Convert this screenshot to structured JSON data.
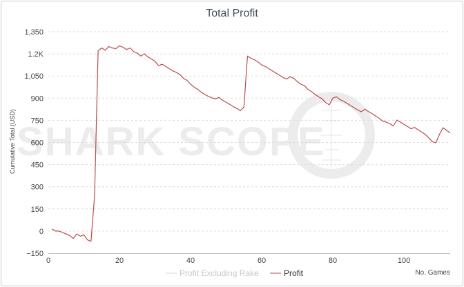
{
  "chart_data": {
    "type": "line",
    "title": "Total Profit",
    "ylabel": "Cumulative Total (USD)",
    "xlabel": "No. Games",
    "watermark": "SHARK SCOPE",
    "xlim": [
      0,
      113
    ],
    "ylim": [
      -150,
      1350
    ],
    "xticks": [
      0,
      20,
      40,
      60,
      80,
      100
    ],
    "yticks": [
      -150,
      0,
      150,
      300,
      450,
      600,
      750,
      900,
      1050,
      1200,
      1350
    ],
    "ytick_labels": [
      "−150",
      "0",
      "150",
      "300",
      "450",
      "600",
      "750",
      "900",
      "1,050",
      "1.2K",
      "1,350"
    ],
    "grid": true,
    "legend_position": "bottom-center",
    "series": [
      {
        "name": "Profit Excluding Rake",
        "color": "#d8d8d8",
        "visible": false,
        "values": []
      },
      {
        "name": "Profit",
        "color": "#b84a4a",
        "visible": true,
        "points": [
          [
            1,
            15
          ],
          [
            2,
            0
          ],
          [
            3,
            0
          ],
          [
            4,
            -10
          ],
          [
            5,
            -20
          ],
          [
            6,
            -30
          ],
          [
            7,
            -50
          ],
          [
            8,
            -20
          ],
          [
            9,
            -35
          ],
          [
            10,
            -25
          ],
          [
            11,
            -60
          ],
          [
            12,
            -70
          ],
          [
            13,
            240
          ],
          [
            14,
            1220
          ],
          [
            15,
            1240
          ],
          [
            16,
            1225
          ],
          [
            17,
            1250
          ],
          [
            18,
            1240
          ],
          [
            19,
            1235
          ],
          [
            20,
            1255
          ],
          [
            21,
            1245
          ],
          [
            22,
            1230
          ],
          [
            23,
            1240
          ],
          [
            24,
            1215
          ],
          [
            25,
            1205
          ],
          [
            26,
            1185
          ],
          [
            27,
            1200
          ],
          [
            28,
            1180
          ],
          [
            29,
            1165
          ],
          [
            30,
            1150
          ],
          [
            31,
            1120
          ],
          [
            32,
            1130
          ],
          [
            33,
            1115
          ],
          [
            34,
            1100
          ],
          [
            35,
            1085
          ],
          [
            36,
            1075
          ],
          [
            37,
            1060
          ],
          [
            38,
            1035
          ],
          [
            39,
            1020
          ],
          [
            40,
            995
          ],
          [
            41,
            975
          ],
          [
            42,
            960
          ],
          [
            43,
            940
          ],
          [
            44,
            925
          ],
          [
            45,
            912
          ],
          [
            46,
            903
          ],
          [
            47,
            895
          ],
          [
            48,
            905
          ],
          [
            49,
            885
          ],
          [
            50,
            873
          ],
          [
            51,
            858
          ],
          [
            52,
            843
          ],
          [
            53,
            830
          ],
          [
            54,
            815
          ],
          [
            55,
            840
          ],
          [
            56,
            1185
          ],
          [
            57,
            1170
          ],
          [
            58,
            1160
          ],
          [
            59,
            1145
          ],
          [
            60,
            1125
          ],
          [
            61,
            1115
          ],
          [
            62,
            1100
          ],
          [
            63,
            1085
          ],
          [
            64,
            1070
          ],
          [
            65,
            1055
          ],
          [
            66,
            1040
          ],
          [
            67,
            1030
          ],
          [
            68,
            1045
          ],
          [
            69,
            1035
          ],
          [
            70,
            1012
          ],
          [
            71,
            995
          ],
          [
            72,
            985
          ],
          [
            73,
            960
          ],
          [
            74,
            945
          ],
          [
            75,
            925
          ],
          [
            76,
            910
          ],
          [
            77,
            895
          ],
          [
            78,
            870
          ],
          [
            79,
            855
          ],
          [
            80,
            900
          ],
          [
            81,
            910
          ],
          [
            82,
            890
          ],
          [
            83,
            880
          ],
          [
            84,
            865
          ],
          [
            85,
            850
          ],
          [
            86,
            835
          ],
          [
            87,
            820
          ],
          [
            88,
            808
          ],
          [
            89,
            825
          ],
          [
            90,
            810
          ],
          [
            91,
            795
          ],
          [
            92,
            780
          ],
          [
            93,
            765
          ],
          [
            94,
            745
          ],
          [
            95,
            738
          ],
          [
            96,
            728
          ],
          [
            97,
            712
          ],
          [
            98,
            752
          ],
          [
            99,
            738
          ],
          [
            100,
            723
          ],
          [
            101,
            708
          ],
          [
            102,
            693
          ],
          [
            103,
            702
          ],
          [
            104,
            685
          ],
          [
            105,
            670
          ],
          [
            106,
            655
          ],
          [
            107,
            630
          ],
          [
            108,
            605
          ],
          [
            109,
            598
          ],
          [
            110,
            655
          ],
          [
            111,
            700
          ],
          [
            112,
            682
          ],
          [
            113,
            665
          ]
        ]
      }
    ]
  }
}
